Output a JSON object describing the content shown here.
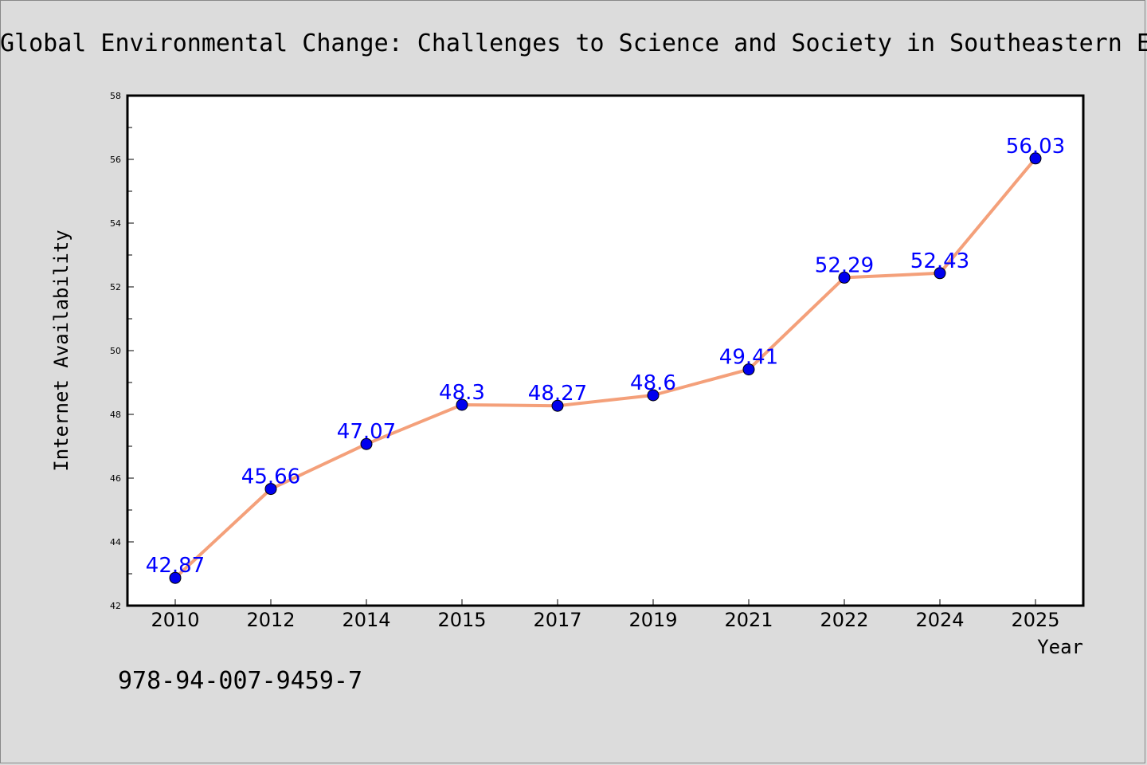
{
  "chart_data": {
    "type": "line",
    "title": "Global Environmental Change: Challenges to Science and Society in Southeastern E",
    "xlabel": "Year",
    "ylabel": "Internet Availability",
    "categories": [
      "2010",
      "2012",
      "2014",
      "2015",
      "2017",
      "2019",
      "2021",
      "2022",
      "2024",
      "2025"
    ],
    "values": [
      42.87,
      45.66,
      47.07,
      48.3,
      48.27,
      48.6,
      49.41,
      52.29,
      52.43,
      56.03
    ],
    "data_labels": [
      "42.87",
      "45.66",
      "47.07",
      "48.3",
      "48.27",
      "48.6",
      "49.41",
      "52.29",
      "52.43",
      "56.03"
    ],
    "ylim": [
      42,
      58
    ],
    "yticks": [
      42,
      44,
      46,
      48,
      50,
      52,
      54,
      56,
      58
    ],
    "grid": false,
    "legend": "none",
    "colors": {
      "line": "#f4a07a",
      "marker": "#0000ee",
      "label": "#0000ff",
      "background": "#dcdcdc",
      "plot_background": "#ffffff"
    }
  },
  "footer": {
    "isbn": "978-94-007-9459-7"
  }
}
